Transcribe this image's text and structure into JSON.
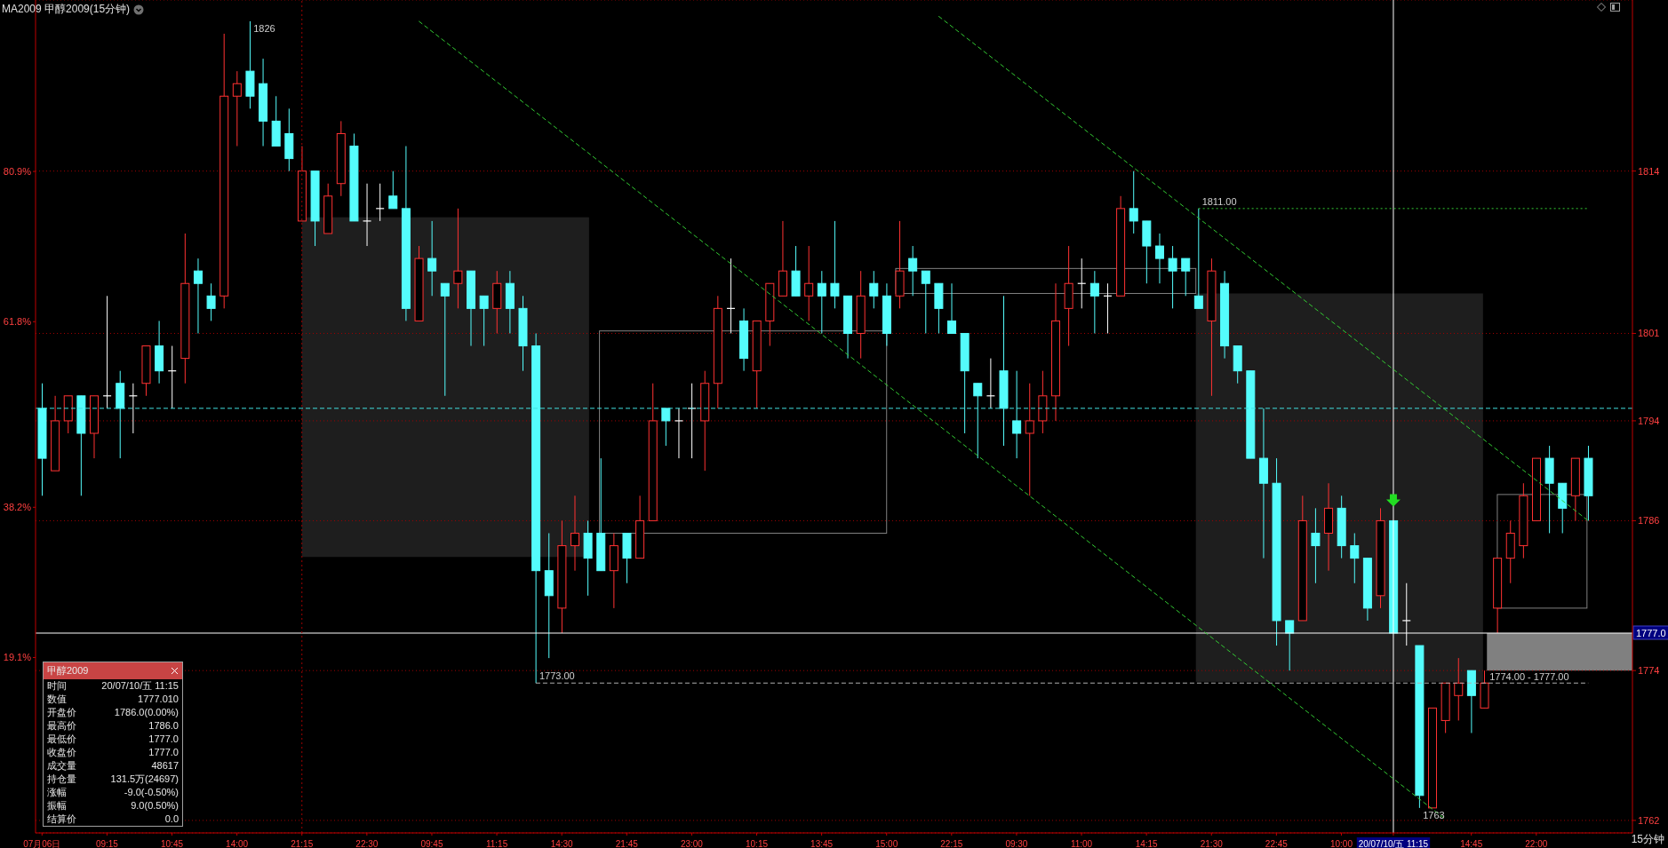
{
  "chart_data": {
    "type": "candlestick",
    "title": "MA2009 甲醇2009(15分钟)",
    "categories": [
      "07月06日",
      null,
      null,
      null,
      null,
      "09:15",
      null,
      null,
      null,
      null,
      "10:45",
      null,
      null,
      null,
      null,
      "14:00",
      null,
      null,
      null,
      null,
      "21:15",
      null,
      null,
      null,
      null,
      "22:30",
      null,
      null,
      null,
      null,
      "09:45",
      null,
      null,
      null,
      null,
      "11:15",
      null,
      null,
      null,
      null,
      "14:30",
      null,
      null,
      null,
      null,
      "21:45",
      null,
      null,
      null,
      null,
      "23:00",
      null,
      null,
      null,
      null,
      "10:15",
      null,
      null,
      null,
      null,
      "13:45",
      null,
      null,
      null,
      null,
      "15:00",
      null,
      null,
      null,
      null,
      "22:15",
      null,
      null,
      null,
      null,
      "09:30",
      null,
      null,
      null,
      null,
      "11:00",
      null,
      null,
      null,
      null,
      "14:15",
      null,
      null,
      null,
      null,
      "21:30",
      null,
      null,
      null,
      null,
      "22:45",
      null,
      null,
      null,
      null,
      "10:00",
      null,
      null,
      null,
      "20/07/10/五 11:15",
      null,
      null,
      null,
      null,
      null,
      "14:45",
      null,
      null,
      null,
      null,
      "22:00",
      null,
      null,
      null,
      null
    ],
    "ohlc": [
      [
        1795,
        1797,
        1788,
        1791
      ],
      [
        1790,
        1796,
        1790,
        1794
      ],
      [
        1794,
        1796,
        1793,
        1796
      ],
      [
        1796,
        1796,
        1788,
        1793
      ],
      [
        1793,
        1796,
        1791,
        1796
      ],
      [
        1796,
        1804,
        1795,
        1796
      ],
      [
        1797,
        1798,
        1791,
        1795
      ],
      [
        1796,
        1797,
        1793,
        1796
      ],
      [
        1797,
        1800,
        1796,
        1800
      ],
      [
        1800,
        1802,
        1797,
        1798
      ],
      [
        1798,
        1800,
        1795,
        1798
      ],
      [
        1799,
        1809,
        1797,
        1805
      ],
      [
        1806,
        1807,
        1801,
        1805
      ],
      [
        1804,
        1805,
        1802,
        1803
      ],
      [
        1804,
        1825,
        1803,
        1820
      ],
      [
        1820,
        1822,
        1816,
        1821
      ],
      [
        1822,
        1826,
        1819,
        1820
      ],
      [
        1821,
        1823,
        1816,
        1818
      ],
      [
        1818,
        1820,
        1816,
        1816
      ],
      [
        1817,
        1819,
        1814,
        1815
      ],
      [
        1810,
        1816,
        1810,
        1814
      ],
      [
        1814,
        1814,
        1808,
        1810
      ],
      [
        1809,
        1813,
        1809,
        1812
      ],
      [
        1813,
        1818,
        1812,
        1817
      ],
      [
        1816,
        1817,
        1810,
        1810
      ],
      [
        1810,
        1813,
        1808,
        1810
      ],
      [
        1811,
        1813,
        1810,
        1811
      ],
      [
        1812,
        1814,
        1811,
        1811
      ],
      [
        1811,
        1816,
        1802,
        1803
      ],
      [
        1802,
        1808,
        1802,
        1807
      ],
      [
        1807,
        1810,
        1804,
        1806
      ],
      [
        1805,
        1805,
        1796,
        1804
      ],
      [
        1805,
        1811,
        1803,
        1806
      ],
      [
        1806,
        1806,
        1800,
        1803
      ],
      [
        1804,
        1804,
        1800,
        1803
      ],
      [
        1803,
        1806,
        1801,
        1805
      ],
      [
        1805,
        1806,
        1801,
        1803
      ],
      [
        1803,
        1804,
        1798,
        1800
      ],
      [
        1800,
        1801,
        1773,
        1782
      ],
      [
        1782,
        1785,
        1775,
        1780
      ],
      [
        1779,
        1786,
        1777,
        1784
      ],
      [
        1784,
        1788,
        1782,
        1785
      ],
      [
        1785,
        1786,
        1780,
        1783
      ],
      [
        1785,
        1791,
        1782,
        1782
      ],
      [
        1782,
        1785,
        1779,
        1784
      ],
      [
        1785,
        1785,
        1781,
        1783
      ],
      [
        1783,
        1788,
        1783,
        1786
      ],
      [
        1786,
        1797,
        1786,
        1794
      ],
      [
        1795,
        1795,
        1792,
        1794
      ],
      [
        1794,
        1795,
        1791,
        1794
      ],
      [
        1795,
        1797,
        1791,
        1795
      ],
      [
        1794,
        1798,
        1790,
        1797
      ],
      [
        1797,
        1804,
        1795,
        1803
      ],
      [
        1803,
        1807,
        1801,
        1803
      ],
      [
        1802,
        1803,
        1798,
        1799
      ],
      [
        1798,
        1802,
        1795,
        1802
      ],
      [
        1802,
        1805,
        1800,
        1805
      ],
      [
        1804,
        1810,
        1804,
        1806
      ],
      [
        1806,
        1808,
        1804,
        1804
      ],
      [
        1804,
        1808,
        1802,
        1805
      ],
      [
        1805,
        1806,
        1801,
        1804
      ],
      [
        1805,
        1810,
        1803,
        1804
      ],
      [
        1804,
        1804,
        1799,
        1801
      ],
      [
        1801,
        1806,
        1799,
        1804
      ],
      [
        1805,
        1806,
        1803,
        1804
      ],
      [
        1804,
        1805,
        1800,
        1801
      ],
      [
        1804,
        1810,
        1803,
        1806
      ],
      [
        1807,
        1808,
        1804,
        1806
      ],
      [
        1806,
        1806,
        1801,
        1805
      ],
      [
        1805,
        1805,
        1801,
        1803
      ],
      [
        1802,
        1805,
        1801,
        1801
      ],
      [
        1801,
        1801,
        1793,
        1798
      ],
      [
        1797,
        1797,
        1791,
        1796
      ],
      [
        1796,
        1799,
        1795,
        1796
      ],
      [
        1798,
        1804,
        1792,
        1795
      ],
      [
        1794,
        1798,
        1791,
        1793
      ],
      [
        1793,
        1797,
        1788,
        1794
      ],
      [
        1794,
        1798,
        1793,
        1796
      ],
      [
        1796,
        1805,
        1794,
        1802
      ],
      [
        1803,
        1808,
        1800,
        1805
      ],
      [
        1805,
        1807,
        1803,
        1805
      ],
      [
        1805,
        1806,
        1801,
        1804
      ],
      [
        1804,
        1805,
        1801,
        1804
      ],
      [
        1804,
        1812,
        1804,
        1811
      ],
      [
        1811,
        1814,
        1809,
        1810
      ],
      [
        1810,
        1810,
        1805,
        1808
      ],
      [
        1808,
        1809,
        1805,
        1807
      ],
      [
        1807,
        1808,
        1803,
        1806
      ],
      [
        1807,
        1807,
        1804,
        1806
      ],
      [
        1804,
        1811,
        1803,
        1803
      ],
      [
        1802,
        1807,
        1796,
        1806
      ],
      [
        1805,
        1806,
        1799,
        1800
      ],
      [
        1800,
        1800,
        1797,
        1798
      ],
      [
        1798,
        1798,
        1791,
        1791
      ],
      [
        1791,
        1795,
        1783,
        1789
      ],
      [
        1789,
        1791,
        1776,
        1778
      ],
      [
        1778,
        1778,
        1774,
        1777
      ],
      [
        1778,
        1788,
        1778,
        1786
      ],
      [
        1785,
        1787,
        1781,
        1784
      ],
      [
        1785,
        1789,
        1782,
        1787
      ],
      [
        1787,
        1788,
        1783,
        1784
      ],
      [
        1784,
        1785,
        1781,
        1783
      ],
      [
        1783,
        1783,
        1778,
        1779
      ],
      [
        1780,
        1787,
        1779,
        1786
      ],
      [
        1786,
        1786,
        1777,
        1777
      ],
      [
        1778,
        1781,
        1776,
        1778
      ],
      [
        1776,
        1776,
        1763,
        1764
      ],
      [
        1763,
        1771,
        1763,
        1771
      ],
      [
        1770,
        1773,
        1769,
        1773
      ],
      [
        1772,
        1775,
        1770,
        1773
      ],
      [
        1774,
        1774,
        1769,
        1772
      ],
      [
        1771,
        1774,
        1771,
        1773
      ],
      [
        1779,
        1783,
        1777,
        1783
      ],
      [
        1783,
        1786,
        1781,
        1785
      ],
      [
        1784,
        1789,
        1783,
        1788
      ],
      [
        1786,
        1791,
        1786,
        1791
      ],
      [
        1791,
        1792,
        1785,
        1789
      ],
      [
        1789,
        1789,
        1785,
        1787
      ],
      [
        1788,
        1791,
        1786,
        1791
      ],
      [
        1791,
        1792,
        1786,
        1788
      ]
    ],
    "colors": [
      "#54fcfc",
      "#ff3232",
      "#ff3232",
      "#54fcfc",
      "#ff3232",
      "#ffffff",
      "#54fcfc",
      "#ffffff",
      "#ff3232",
      "#54fcfc",
      "#ffffff",
      "#ff3232",
      "#54fcfc",
      "#54fcfc",
      "#ff3232",
      "#ff3232",
      "#54fcfc",
      "#54fcfc",
      "#54fcfc",
      "#54fcfc",
      "#ff3232",
      "#54fcfc",
      "#ff3232",
      "#ff3232",
      "#54fcfc",
      "#ffffff",
      "#ffffff",
      "#54fcfc",
      "#54fcfc",
      "#ff3232",
      "#54fcfc",
      "#54fcfc",
      "#ff3232",
      "#54fcfc",
      "#54fcfc",
      "#ff3232",
      "#54fcfc",
      "#54fcfc",
      "#54fcfc",
      "#54fcfc",
      "#ff3232",
      "#ff3232",
      "#54fcfc",
      "#54fcfc",
      "#ff3232",
      "#54fcfc",
      "#ff3232",
      "#ff3232",
      "#54fcfc",
      "#ffffff",
      "#ffffff",
      "#ff3232",
      "#ff3232",
      "#ffffff",
      "#54fcfc",
      "#ff3232",
      "#ff3232",
      "#ff3232",
      "#54fcfc",
      "#ff3232",
      "#54fcfc",
      "#54fcfc",
      "#54fcfc",
      "#ff3232",
      "#54fcfc",
      "#54fcfc",
      "#ff3232",
      "#54fcfc",
      "#54fcfc",
      "#54fcfc",
      "#54fcfc",
      "#54fcfc",
      "#54fcfc",
      "#ffffff",
      "#54fcfc",
      "#54fcfc",
      "#ff3232",
      "#ff3232",
      "#ff3232",
      "#ff3232",
      "#ffffff",
      "#54fcfc",
      "#ffffff",
      "#ff3232",
      "#54fcfc",
      "#54fcfc",
      "#54fcfc",
      "#54fcfc",
      "#54fcfc",
      "#54fcfc",
      "#ff3232",
      "#54fcfc",
      "#54fcfc",
      "#54fcfc",
      "#54fcfc",
      "#54fcfc",
      "#54fcfc",
      "#ff3232",
      "#54fcfc",
      "#ff3232",
      "#54fcfc",
      "#54fcfc",
      "#54fcfc",
      "#ff3232",
      "#54fcfc",
      "#ffffff",
      "#54fcfc",
      "#ff3232",
      "#ff3232",
      "#ff3232",
      "#54fcfc",
      "#ff3232",
      "#ff3232",
      "#ff3232",
      "#ff3232",
      "#ff3232",
      "#54fcfc",
      "#54fcfc",
      "#ff3232",
      "#54fcfc"
    ],
    "series": [
      {
        "type": "line",
        "color": "#33cc33",
        "line_style": "dashed",
        "values": [
          null,
          null,
          null,
          null,
          null,
          null,
          null,
          null,
          null,
          null,
          null,
          null,
          null,
          null,
          null,
          null,
          null,
          null,
          null,
          null,
          null,
          null,
          null,
          null,
          null,
          null,
          null,
          null,
          null,
          1826.0,
          null,
          null,
          null,
          null,
          null,
          null,
          null,
          null,
          null,
          null,
          null,
          null,
          null,
          null,
          null,
          null,
          null,
          null,
          null,
          null,
          null,
          null,
          null,
          null,
          null,
          null,
          null,
          null,
          null,
          null,
          null,
          null,
          null,
          null,
          null,
          null,
          null,
          null,
          null,
          null,
          null,
          null,
          null,
          null,
          null,
          null,
          null,
          null,
          null,
          null,
          null,
          null,
          null,
          null,
          null,
          null,
          null,
          null,
          null,
          null,
          null,
          null,
          null,
          null,
          null,
          null,
          null,
          null,
          null,
          null,
          null,
          null,
          null,
          null,
          null,
          null,
          null,
          null,
          1762.1,
          null,
          null,
          null,
          null,
          null,
          null,
          null,
          null,
          null,
          null,
          null
        ]
      },
      {
        "type": "line",
        "color": "#33cc33",
        "line_style": "dashed",
        "values": [
          null,
          null,
          null,
          null,
          null,
          null,
          null,
          null,
          null,
          null,
          null,
          null,
          null,
          null,
          null,
          null,
          null,
          null,
          null,
          null,
          null,
          null,
          null,
          null,
          null,
          null,
          null,
          null,
          null,
          null,
          null,
          null,
          null,
          null,
          null,
          null,
          null,
          null,
          null,
          null,
          null,
          null,
          null,
          null,
          null,
          null,
          null,
          null,
          null,
          null,
          null,
          null,
          null,
          null,
          null,
          null,
          null,
          null,
          null,
          null,
          null,
          null,
          null,
          null,
          null,
          null,
          null,
          null,
          null,
          1826.4,
          null,
          null,
          null,
          null,
          null,
          null,
          null,
          null,
          null,
          null,
          null,
          null,
          null,
          null,
          null,
          null,
          null,
          null,
          null,
          null,
          null,
          null,
          null,
          null,
          null,
          null,
          null,
          null,
          null,
          null,
          null,
          null,
          null,
          null,
          null,
          null,
          null,
          null,
          null,
          null,
          null,
          null,
          null,
          null,
          null,
          null,
          null,
          null,
          null,
          1786.0
        ]
      },
      {
        "type": "line",
        "color": "#33cc33",
        "line_style": "dotted",
        "name": "1811.00",
        "values": [
          null,
          null,
          null,
          null,
          null,
          null,
          null,
          null,
          null,
          null,
          null,
          null,
          null,
          null,
          null,
          null,
          null,
          null,
          null,
          null,
          null,
          null,
          null,
          null,
          null,
          null,
          null,
          null,
          null,
          null,
          null,
          null,
          null,
          null,
          null,
          null,
          null,
          null,
          null,
          null,
          null,
          null,
          null,
          null,
          null,
          null,
          null,
          null,
          null,
          null,
          null,
          null,
          null,
          null,
          null,
          null,
          null,
          null,
          null,
          null,
          null,
          null,
          null,
          null,
          null,
          null,
          null,
          null,
          null,
          null,
          null,
          null,
          null,
          null,
          null,
          null,
          null,
          null,
          null,
          null,
          null,
          null,
          null,
          null,
          null,
          null,
          null,
          null,
          null,
          1811,
          null,
          null,
          null,
          null,
          null,
          null,
          null,
          null,
          null,
          null,
          null,
          null,
          null,
          null,
          null,
          null,
          null,
          null,
          null,
          null,
          null,
          null,
          null,
          null,
          null,
          null,
          null,
          null,
          null,
          1811
        ]
      },
      {
        "type": "line",
        "color": "#b0b0b0",
        "line_style": "dashed",
        "name": "1773.00",
        "values": [
          null,
          null,
          null,
          null,
          null,
          null,
          null,
          null,
          null,
          null,
          null,
          null,
          null,
          null,
          null,
          null,
          null,
          null,
          null,
          null,
          null,
          null,
          null,
          null,
          null,
          null,
          null,
          null,
          null,
          null,
          null,
          null,
          null,
          null,
          null,
          null,
          null,
          null,
          1773,
          null,
          null,
          null,
          null,
          null,
          null,
          null,
          null,
          null,
          null,
          null,
          null,
          null,
          null,
          null,
          null,
          null,
          null,
          null,
          null,
          null,
          null,
          null,
          null,
          null,
          null,
          null,
          null,
          null,
          null,
          null,
          null,
          null,
          null,
          null,
          null,
          null,
          null,
          null,
          null,
          null,
          null,
          null,
          null,
          null,
          null,
          null,
          null,
          null,
          null,
          null,
          null,
          null,
          null,
          null,
          null,
          null,
          null,
          null,
          null,
          null,
          null,
          null,
          null,
          null,
          null,
          null,
          null,
          null,
          null,
          null,
          null,
          null,
          null,
          null,
          null,
          null,
          null,
          null,
          null,
          1773
        ]
      }
    ],
    "ref_lines": [
      {
        "axis": "y",
        "value": 1795,
        "color": "#40e0e0",
        "line_style": "dashed"
      },
      {
        "axis": "y",
        "value": 1777,
        "color": "#ffffff",
        "label": "1777.0"
      },
      {
        "axis": "x",
        "value": "20/07/10/五 11:15",
        "color": "#ffffff"
      },
      {
        "axis": "x",
        "value": "21:15",
        "color": "#a00000",
        "line_style": "dotted"
      }
    ],
    "annotations": [
      "1826",
      "1763",
      "1774.00 - 1777.00",
      "15分钟",
      "甲醇2009",
      "时间",
      "20/07/10/五  11:15",
      "数值",
      "1777.010",
      "开盘价",
      "1786.0(0.00%)",
      "最高价",
      "1786.0",
      "最低价",
      "1777.0",
      "收盘价",
      "1777.0",
      "成交量",
      "48617",
      "持仓量",
      "131.5万(24697)",
      "涨幅",
      "-9.0(-0.50%)",
      "振幅",
      "9.0(0.50%)",
      "结算价",
      "0.0"
    ],
    "ylim": [
      1761,
      1827.7
    ],
    "yticks": [
      1762,
      1774,
      1786,
      1794,
      1801,
      1814
    ],
    "y2lim": [
      -3.2,
      102.7
    ],
    "y2ticks": [
      {
        "value": 19.1,
        "label": "19.1%"
      },
      {
        "value": 38.2,
        "label": "38.2%"
      },
      {
        "value": 61.8,
        "label": "61.8%"
      },
      {
        "value": 80.9,
        "label": "80.9%"
      }
    ],
    "grid": "y"
  }
}
